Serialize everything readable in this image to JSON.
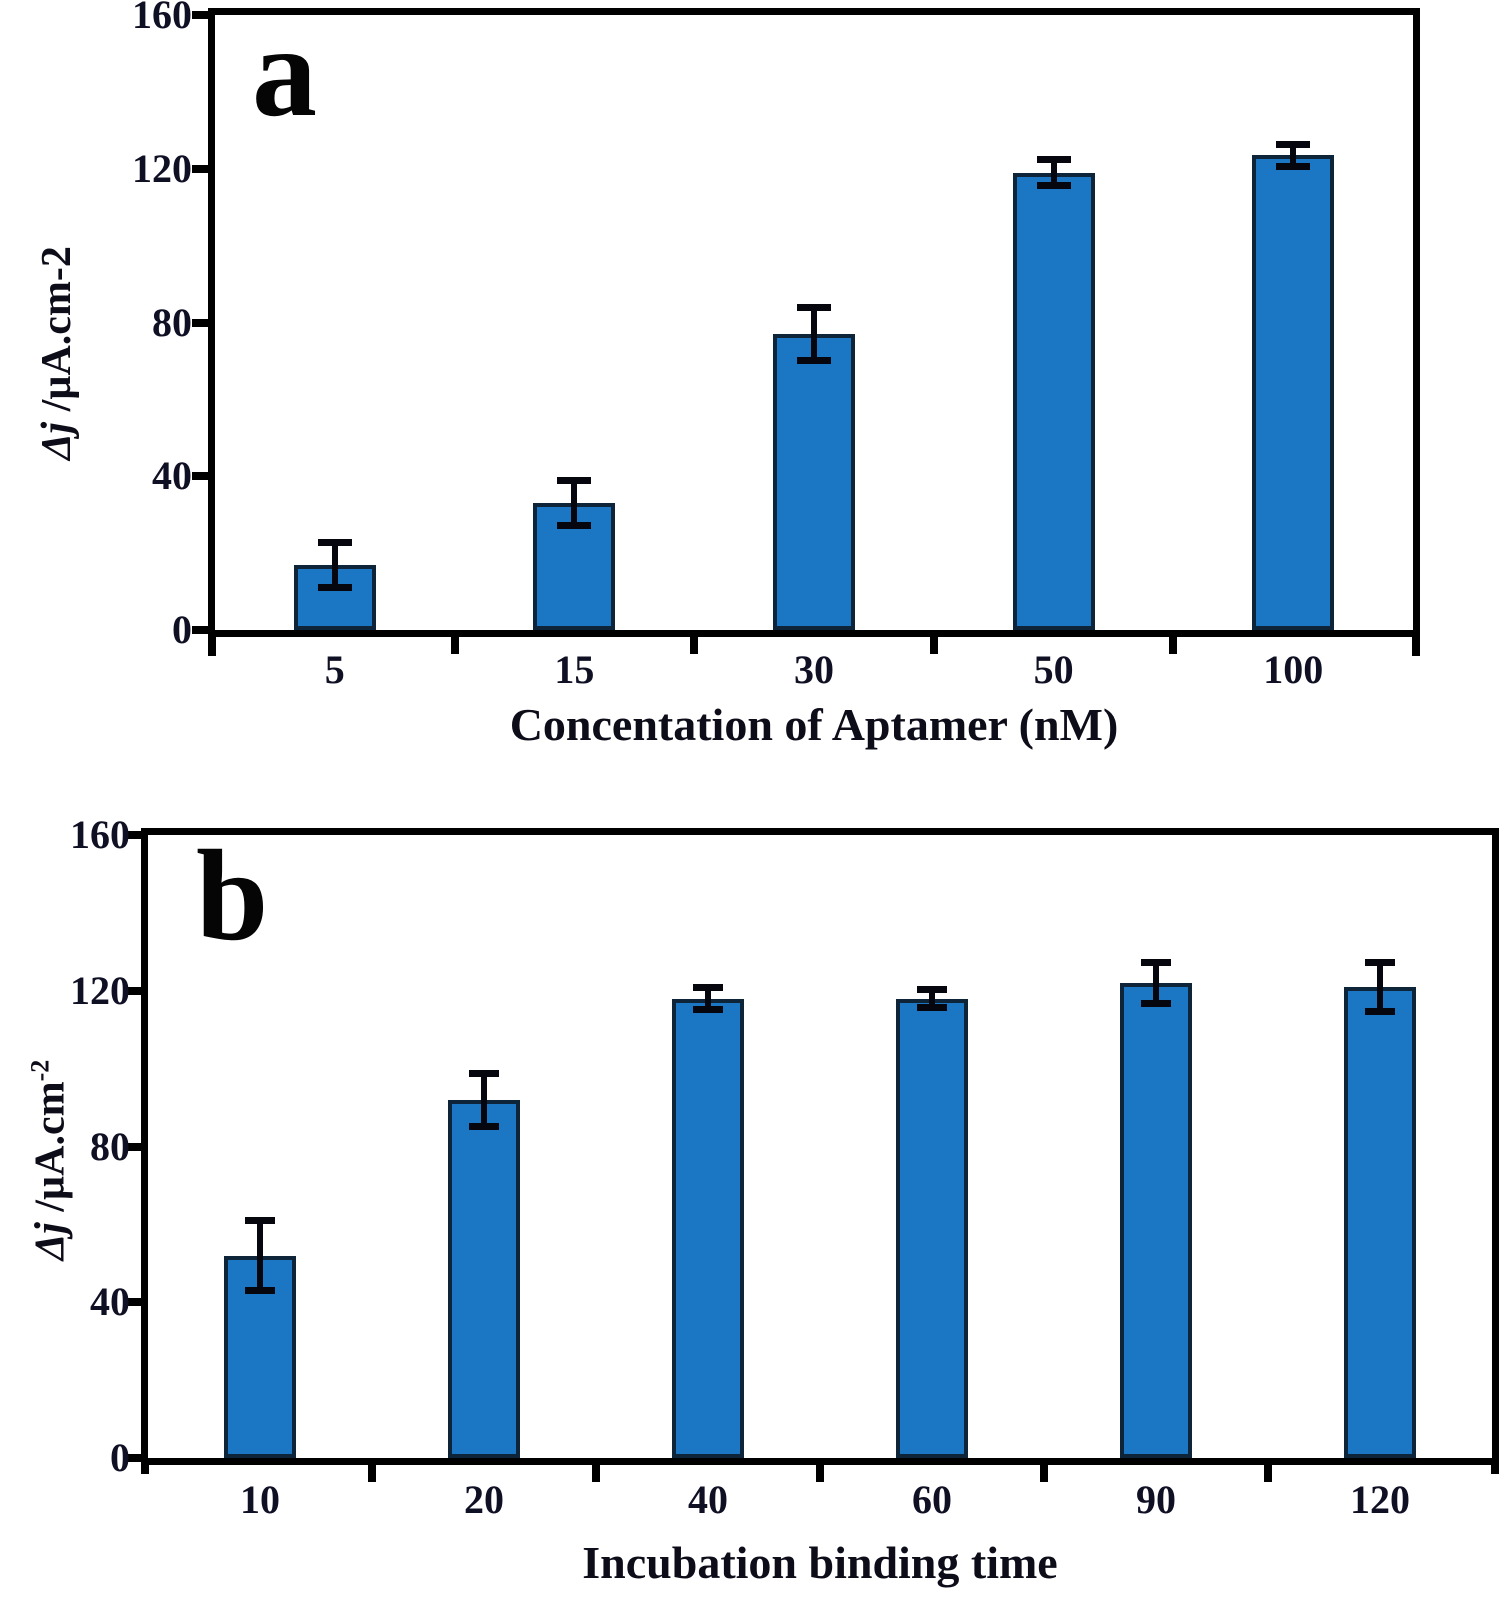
{
  "figure": {
    "background": "#ffffff"
  },
  "chart_data": [
    {
      "type": "bar",
      "panel_label": "a",
      "xlabel": "Concentation of Aptamer (nM)",
      "ylabel_dj": "Δj",
      "ylabel_rest": " /µA.cm",
      "ylabel_exp": "-2",
      "ylabel_exp_superscript": false,
      "categories": [
        "5",
        "15",
        "30",
        "50",
        "100"
      ],
      "values": [
        17,
        33,
        77,
        119,
        123.5
      ],
      "errors": [
        6,
        6,
        7,
        3.5,
        3
      ],
      "yticks": [
        0,
        40,
        80,
        120,
        160
      ],
      "ylim": [
        0,
        160
      ],
      "grid": false,
      "legend": null,
      "bar_color": "#1B77C4",
      "bar_border_color": "#0E2439",
      "error_bar_color": "#06060F",
      "axis_color": "#000000"
    },
    {
      "type": "bar",
      "panel_label": "b",
      "xlabel": "Incubation binding time",
      "ylabel_dj": "Δj",
      "ylabel_rest": " /µA.cm",
      "ylabel_exp": "-2",
      "ylabel_exp_superscript": true,
      "categories": [
        "10",
        "20",
        "40",
        "60",
        "90",
        "120"
      ],
      "values": [
        52,
        92,
        118,
        118,
        122,
        121
      ],
      "errors": [
        9,
        7,
        3,
        2.5,
        5.5,
        6.5
      ],
      "yticks": [
        0,
        40,
        80,
        120,
        160
      ],
      "ylim": [
        0,
        160
      ],
      "grid": false,
      "legend": null,
      "bar_color": "#1B77C4",
      "bar_border_color": "#0E2439",
      "error_bar_color": "#06060F",
      "axis_color": "#000000"
    }
  ]
}
